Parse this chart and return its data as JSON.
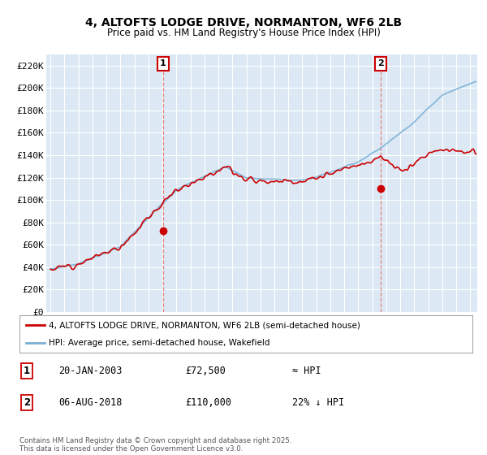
{
  "title": "4, ALTOFTS LODGE DRIVE, NORMANTON, WF6 2LB",
  "subtitle": "Price paid vs. HM Land Registry's House Price Index (HPI)",
  "ylim": [
    0,
    230000
  ],
  "yticks": [
    0,
    20000,
    40000,
    60000,
    80000,
    100000,
    120000,
    140000,
    160000,
    180000,
    200000,
    220000
  ],
  "ytick_labels": [
    "£0",
    "£20K",
    "£40K",
    "£60K",
    "£80K",
    "£100K",
    "£120K",
    "£140K",
    "£160K",
    "£180K",
    "£200K",
    "£220K"
  ],
  "plot_bg": "#dce9f5",
  "legend_label_red": "4, ALTOFTS LODGE DRIVE, NORMANTON, WF6 2LB (semi-detached house)",
  "legend_label_blue": "HPI: Average price, semi-detached house, Wakefield",
  "sale1_date": "20-JAN-2003",
  "sale1_price": "£72,500",
  "sale1_hpi": "≈ HPI",
  "sale2_date": "06-AUG-2018",
  "sale2_price": "£110,000",
  "sale2_hpi": "22% ↓ HPI",
  "footnote": "Contains HM Land Registry data © Crown copyright and database right 2025.\nThis data is licensed under the Open Government Licence v3.0.",
  "red_color": "#cc0000",
  "blue_color": "#7aaed4",
  "marker1_x": 2003.05,
  "marker1_y": 72500,
  "marker2_x": 2018.6,
  "marker2_y": 110000,
  "xmin": 1994.7,
  "xmax": 2025.5
}
